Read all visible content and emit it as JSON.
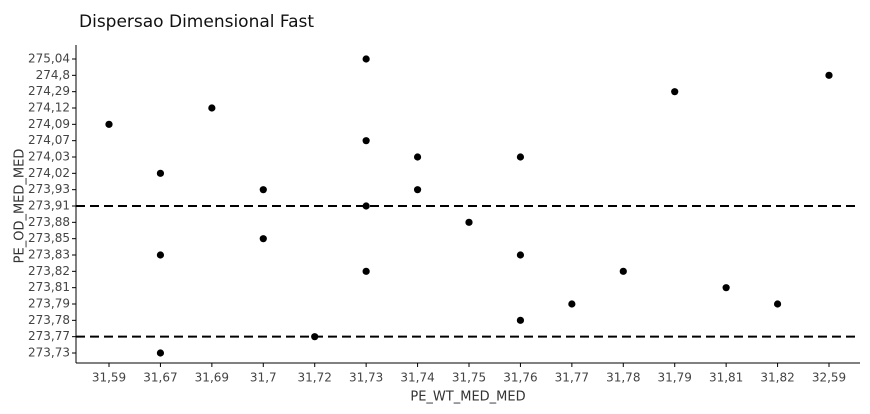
{
  "chart_data": {
    "type": "scatter",
    "title": "Dispersao Dimensional Fast",
    "x_label": "PE_WT_MED_MED",
    "y_label": "PE_OD_MED_MED",
    "x_categories": [
      "31,59",
      "31,67",
      "31,69",
      "31,7",
      "31,72",
      "31,73",
      "31,74",
      "31,75",
      "31,76",
      "31,77",
      "31,78",
      "31,79",
      "31,81",
      "31,82",
      "32,59"
    ],
    "y_categories": [
      "275,04",
      "274,8",
      "274,29",
      "274,12",
      "274,09",
      "274,07",
      "274,03",
      "274,02",
      "273,93",
      "273,91",
      "273,88",
      "273,85",
      "273,83",
      "273,82",
      "273,81",
      "273,79",
      "273,78",
      "273,77",
      "273,73"
    ],
    "x": [
      "31,73",
      "32,59",
      "31,79",
      "31,69",
      "31,59",
      "31,73",
      "31,74",
      "31,76",
      "31,67",
      "31,7",
      "31,74",
      "31,73",
      "31,75",
      "31,7",
      "31,67",
      "31,76",
      "31,73",
      "31,78",
      "31,81",
      "31,77",
      "31,82",
      "31,76",
      "31,72",
      "31,67"
    ],
    "y": [
      "275,04",
      "274,8",
      "274,29",
      "274,12",
      "274,09",
      "274,07",
      "274,03",
      "274,03",
      "274,02",
      "273,93",
      "273,93",
      "273,91",
      "273,88",
      "273,85",
      "273,83",
      "273,83",
      "273,82",
      "273,82",
      "273,81",
      "273,79",
      "273,79",
      "273,78",
      "273,77",
      "273,73"
    ],
    "color": "#000000",
    "reference_lines": [
      "273,91",
      "273,77"
    ]
  }
}
